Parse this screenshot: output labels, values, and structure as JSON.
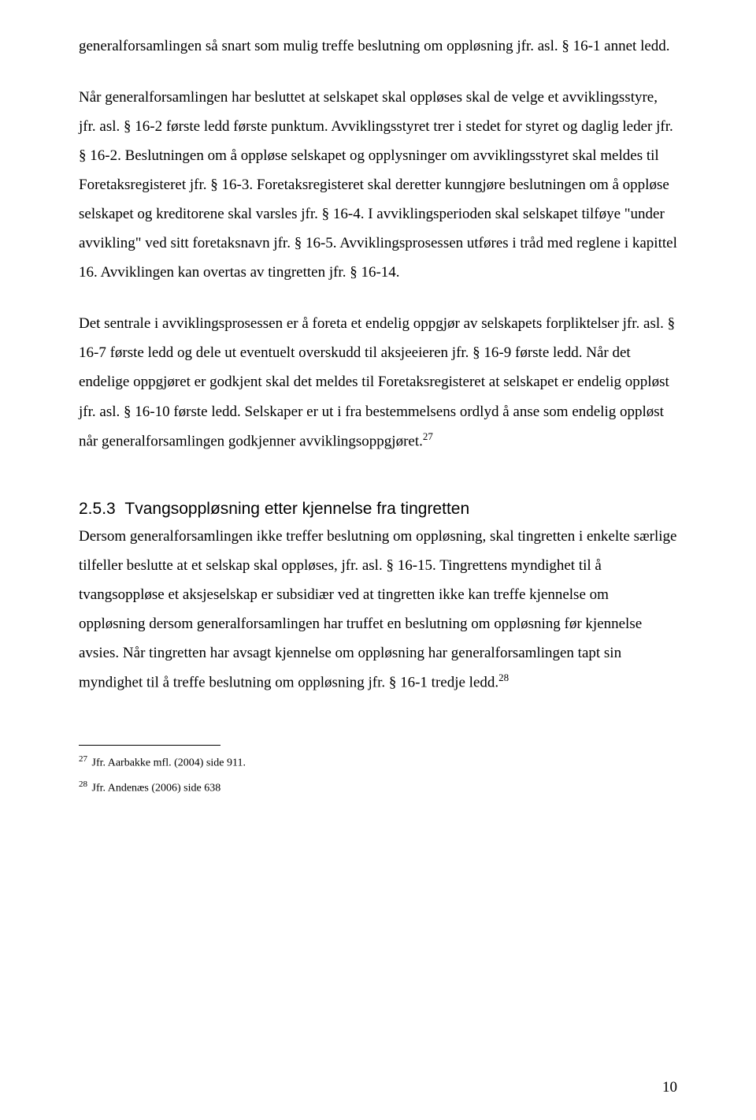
{
  "paragraphs": {
    "p1": "generalforsamlingen så snart som mulig treffe beslutning om oppløsning jfr. asl. § 16-1 annet ledd.",
    "p2_a": "Når generalforsamlingen har besluttet at selskapet skal oppløses skal de velge et avviklingsstyre, jfr. asl. § 16-2 første ledd første punktum. Avviklingsstyret trer i stedet for styret og daglig leder jfr. § 16-2. Beslutningen om å oppløse selskapet og opplysninger om avviklingsstyret skal meldes til Foretaksregisteret jfr. § 16-3. Foretaksregisteret skal deretter kunngjøre beslutningen om å oppløse selskapet og kreditorene skal varsles jfr. § 16-4. I avviklingsperioden skal selskapet tilføye \"under avvikling\" ved sitt foretaksnavn jfr. § 16-5. Avviklingsprosessen utføres i tråd med reglene i kapittel 16. Avviklingen kan overtas av tingretten jfr. § 16-14.",
    "p3_a": "Det sentrale i avviklingsprosessen er å foreta et endelig oppgjør av selskapets forpliktelser jfr. asl. § 16-7 første ledd og dele ut eventuelt overskudd til aksjeeieren jfr. § 16-9 første ledd. Når det endelige oppgjøret er godkjent skal det meldes til Foretaksregisteret at selskapet er endelig oppløst jfr. asl. § 16-10 første ledd. Selskaper er ut i fra bestemmelsens ordlyd å anse som endelig oppløst når generalforsamlingen godkjenner avviklingsoppgjøret.",
    "p3_sup": "27",
    "p4_a": "Dersom generalforsamlingen ikke treffer beslutning om oppløsning, skal tingretten i enkelte særlige tilfeller beslutte at et selskap skal oppløses, jfr. asl. § 16-15. Tingrettens myndighet til å tvangsoppløse et aksjeselskap er subsidiær ved at tingretten ikke kan treffe kjennelse om oppløsning dersom generalforsamlingen har truffet en beslutning om oppløsning før kjennelse avsies. Når tingretten har avsagt kjennelse om oppløsning har generalforsamlingen tapt sin myndighet til å treffe beslutning om oppløsning jfr. § 16-1 tredje ledd.",
    "p4_sup": "28"
  },
  "heading": {
    "number": "2.5.3",
    "title": "Tvangsoppløsning etter kjennelse fra tingretten"
  },
  "footnotes": {
    "f27_num": "27",
    "f27_text": " Jfr. Aarbakke mfl. (2004) side 911.",
    "f28_num": "28",
    "f28_text": " Jfr. Andenæs (2006) side 638"
  },
  "page_number": "10"
}
